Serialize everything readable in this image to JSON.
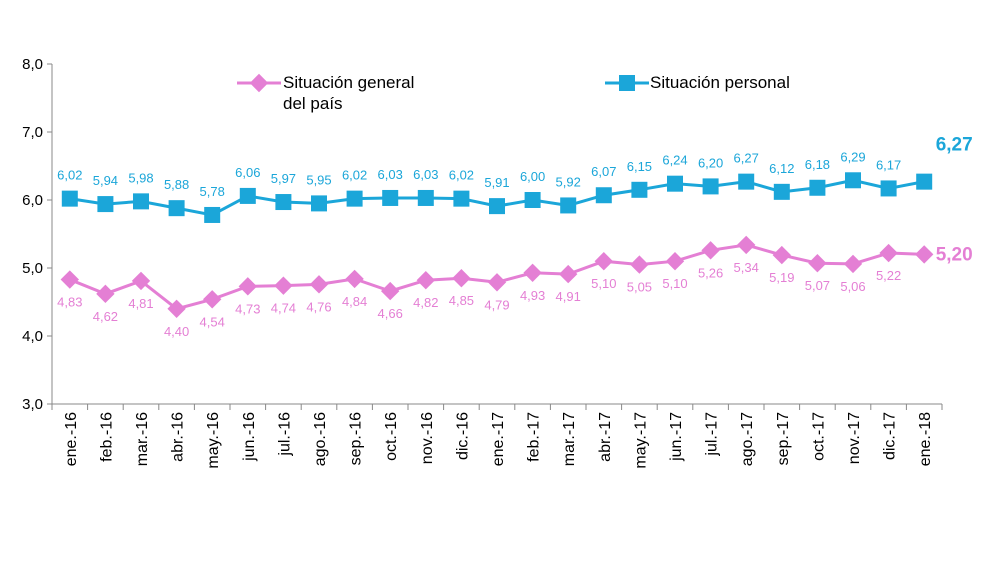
{
  "chart_data": {
    "type": "line",
    "categories": [
      "ene.-16",
      "feb.-16",
      "mar.-16",
      "abr.-16",
      "may.-16",
      "jun.-16",
      "jul.-16",
      "ago.-16",
      "sep.-16",
      "oct.-16",
      "nov.-16",
      "dic.-16",
      "ene.-17",
      "feb.-17",
      "mar.-17",
      "abr.-17",
      "may.-17",
      "jun.-17",
      "jul.-17",
      "ago.-17",
      "sep.-17",
      "oct.-17",
      "nov.-17",
      "dic.-17",
      "ene.-18"
    ],
    "series": [
      {
        "name": "Situación general del país",
        "color": "#e47fd4",
        "values": [
          4.83,
          4.62,
          4.81,
          4.4,
          4.54,
          4.73,
          4.74,
          4.76,
          4.84,
          4.66,
          4.82,
          4.85,
          4.79,
          4.93,
          4.91,
          5.1,
          5.05,
          5.1,
          5.26,
          5.34,
          5.19,
          5.07,
          5.06,
          5.22,
          5.2
        ],
        "value_labels": [
          "4,83",
          "4,62",
          "4,81",
          "4,40",
          "4,54",
          "4,73",
          "4,74",
          "4,76",
          "4,84",
          "4,66",
          "4,82",
          "4,85",
          "4,79",
          "4,93",
          "4,91",
          "5,10",
          "5,05",
          "5,10",
          "5,26",
          "5,34",
          "5,19",
          "5,07",
          "5,06",
          "5,22",
          "5,20"
        ]
      },
      {
        "name": "Situación personal",
        "color": "#1ba6d9",
        "values": [
          6.02,
          5.94,
          5.98,
          5.88,
          5.78,
          6.06,
          5.97,
          5.95,
          6.02,
          6.03,
          6.03,
          6.02,
          5.91,
          6.0,
          5.92,
          6.07,
          6.15,
          6.24,
          6.2,
          6.27,
          6.12,
          6.18,
          6.29,
          6.17,
          6.27
        ],
        "value_labels": [
          "6,02",
          "5,94",
          "5,98",
          "5,88",
          "5,78",
          "6,06",
          "5,97",
          "5,95",
          "6,02",
          "6,03",
          "6,03",
          "6,02",
          "5,91",
          "6,00",
          "5,92",
          "6,07",
          "6,15",
          "6,24",
          "6,20",
          "6,27",
          "6,12",
          "6,18",
          "6,29",
          "6,17",
          "6,27"
        ]
      }
    ],
    "ylim": [
      3,
      8
    ],
    "yticks": [
      {
        "value": 3,
        "label": "3,0"
      },
      {
        "value": 4,
        "label": "4,0"
      },
      {
        "value": 5,
        "label": "5,0"
      },
      {
        "value": 6,
        "label": "6,0"
      },
      {
        "value": 7,
        "label": "7,0"
      },
      {
        "value": 8,
        "label": "8,0"
      }
    ],
    "grid": false
  }
}
